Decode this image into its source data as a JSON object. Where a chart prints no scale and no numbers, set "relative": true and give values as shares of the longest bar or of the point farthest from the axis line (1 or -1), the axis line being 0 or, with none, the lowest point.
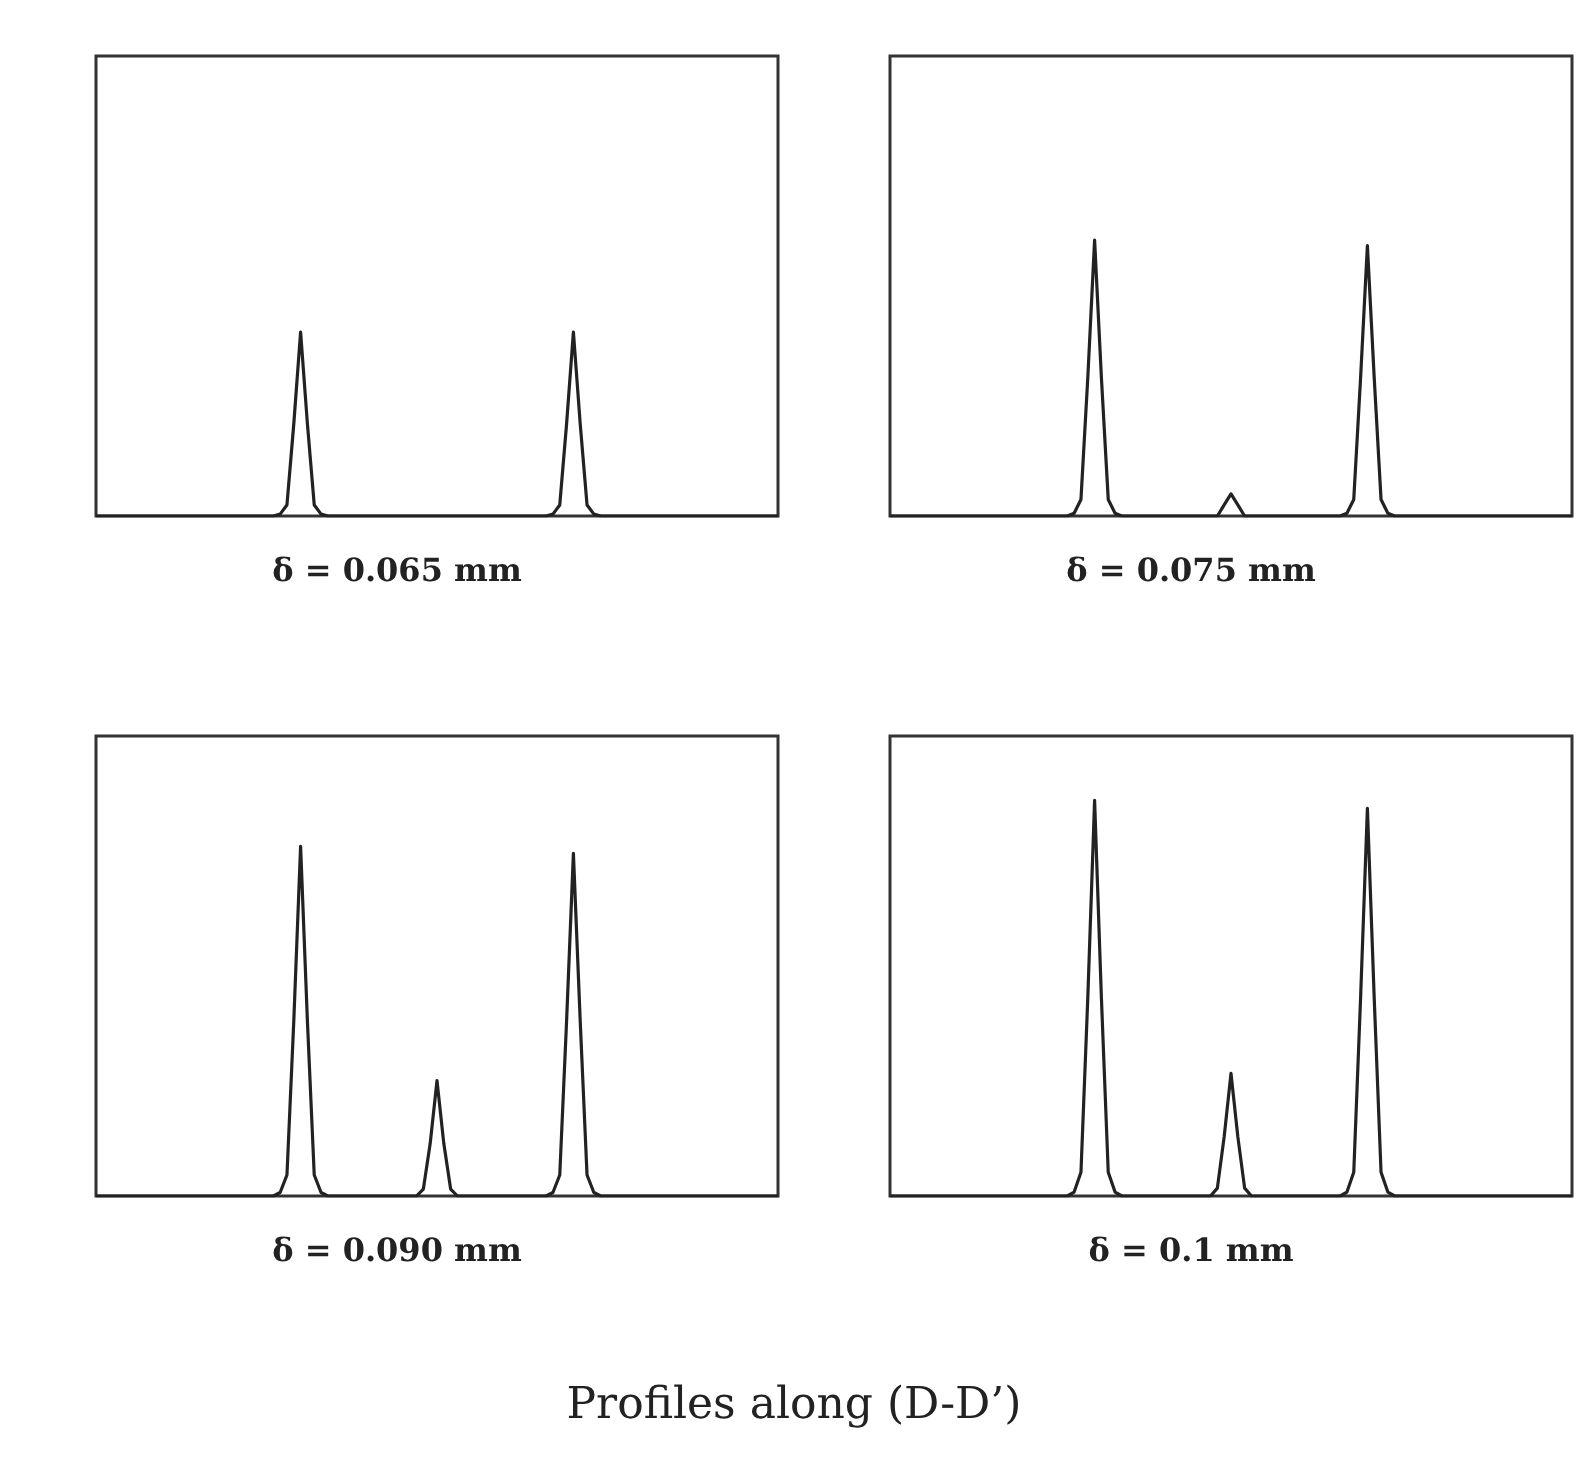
{
  "chart_data": [
    {
      "type": "line",
      "title": "δ = 0.065 mm",
      "relative": true,
      "line_style": "solid",
      "categories": [
        null,
        null,
        null,
        null,
        null,
        null,
        null,
        null,
        null,
        null,
        null,
        null,
        null,
        null,
        null,
        null,
        null,
        null,
        null,
        null,
        null,
        null,
        null,
        null,
        null,
        null,
        null,
        null,
        null,
        null,
        null,
        null,
        null,
        null,
        null,
        null,
        null,
        null,
        null,
        null,
        null,
        null,
        null,
        null,
        null,
        null,
        null,
        null,
        null,
        null,
        null,
        null,
        null,
        null,
        null,
        null,
        null,
        null,
        null,
        null,
        null,
        null,
        null,
        null,
        null,
        null,
        null,
        null,
        null,
        null,
        null,
        null,
        null,
        null,
        null,
        null,
        null,
        null,
        null,
        null,
        null,
        null,
        null,
        null,
        null,
        null,
        null,
        null,
        null,
        null,
        null,
        null,
        null,
        null,
        null,
        null,
        null,
        null,
        null,
        null,
        null
      ],
      "series": [
        {
          "color": "#222222",
          "values": [
            0,
            0,
            0,
            0,
            0,
            0,
            0,
            0,
            0,
            0,
            0,
            0,
            0,
            0,
            0,
            0,
            0,
            0,
            0,
            0,
            0,
            0,
            0,
            0,
            0,
            0,
            0,
            0.01,
            0.06,
            0.5,
            1,
            0.5,
            0.06,
            0.01,
            0,
            0,
            0,
            0,
            0,
            0,
            0,
            0,
            0,
            0,
            0,
            0,
            0,
            0,
            0,
            0,
            0,
            0,
            0,
            0,
            0,
            0,
            0,
            0,
            0,
            0,
            0,
            0,
            0,
            0,
            0,
            0,
            0,
            0.01,
            0.06,
            0.5,
            1,
            0.5,
            0.06,
            0.01,
            0,
            0,
            0,
            0,
            0,
            0,
            0,
            0,
            0,
            0,
            0,
            0,
            0,
            0,
            0,
            0,
            0,
            0,
            0,
            0,
            0,
            0,
            0,
            0,
            0,
            0,
            0
          ]
        }
      ]
    },
    {
      "type": "line",
      "title": "δ = 0.075 mm",
      "relative": true,
      "line_style": "solid",
      "categories": [
        null,
        null,
        null,
        null,
        null,
        null,
        null,
        null,
        null,
        null,
        null,
        null,
        null,
        null,
        null,
        null,
        null,
        null,
        null,
        null,
        null,
        null,
        null,
        null,
        null,
        null,
        null,
        null,
        null,
        null,
        null,
        null,
        null,
        null,
        null,
        null,
        null,
        null,
        null,
        null,
        null,
        null,
        null,
        null,
        null,
        null,
        null,
        null,
        null,
        null,
        null,
        null,
        null,
        null,
        null,
        null,
        null,
        null,
        null,
        null,
        null,
        null,
        null,
        null,
        null,
        null,
        null,
        null,
        null,
        null,
        null,
        null,
        null,
        null,
        null,
        null,
        null,
        null,
        null,
        null,
        null,
        null,
        null,
        null,
        null,
        null,
        null,
        null,
        null,
        null,
        null,
        null,
        null,
        null,
        null,
        null,
        null,
        null,
        null,
        null,
        null
      ],
      "series": [
        {
          "color": "#222222",
          "values": [
            0,
            0,
            0,
            0,
            0,
            0,
            0,
            0,
            0,
            0,
            0,
            0,
            0,
            0,
            0,
            0,
            0,
            0,
            0,
            0,
            0,
            0,
            0,
            0,
            0,
            0,
            0,
            0.01,
            0.06,
            0.5,
            1,
            0.5,
            0.06,
            0.01,
            0,
            0,
            0,
            0,
            0,
            0,
            0,
            0,
            0,
            0,
            0,
            0,
            0,
            0,
            0,
            0.04,
            0.08,
            0.04,
            0,
            0,
            0,
            0,
            0,
            0,
            0,
            0,
            0,
            0,
            0,
            0,
            0,
            0,
            0,
            0.01,
            0.06,
            0.5,
            0.98,
            0.5,
            0.06,
            0.01,
            0,
            0,
            0,
            0,
            0,
            0,
            0,
            0,
            0,
            0,
            0,
            0,
            0,
            0,
            0,
            0,
            0,
            0,
            0,
            0,
            0,
            0,
            0,
            0,
            0,
            0,
            0
          ]
        }
      ]
    },
    {
      "type": "line",
      "title": "δ = 0.090 mm",
      "relative": true,
      "line_style": "solid",
      "categories": [
        null,
        null,
        null,
        null,
        null,
        null,
        null,
        null,
        null,
        null,
        null,
        null,
        null,
        null,
        null,
        null,
        null,
        null,
        null,
        null,
        null,
        null,
        null,
        null,
        null,
        null,
        null,
        null,
        null,
        null,
        null,
        null,
        null,
        null,
        null,
        null,
        null,
        null,
        null,
        null,
        null,
        null,
        null,
        null,
        null,
        null,
        null,
        null,
        null,
        null,
        null,
        null,
        null,
        null,
        null,
        null,
        null,
        null,
        null,
        null,
        null,
        null,
        null,
        null,
        null,
        null,
        null,
        null,
        null,
        null,
        null,
        null,
        null,
        null,
        null,
        null,
        null,
        null,
        null,
        null,
        null,
        null,
        null,
        null,
        null,
        null,
        null,
        null,
        null,
        null,
        null,
        null,
        null,
        null,
        null,
        null,
        null,
        null,
        null,
        null,
        null
      ],
      "series": [
        {
          "color": "#222222",
          "values": [
            0,
            0,
            0,
            0,
            0,
            0,
            0,
            0,
            0,
            0,
            0,
            0,
            0,
            0,
            0,
            0,
            0,
            0,
            0,
            0,
            0,
            0,
            0,
            0,
            0,
            0,
            0,
            0.01,
            0.06,
            0.5,
            1,
            0.5,
            0.06,
            0.01,
            0,
            0,
            0,
            0,
            0,
            0,
            0,
            0,
            0,
            0,
            0,
            0,
            0,
            0,
            0.02,
            0.15,
            0.33,
            0.15,
            0.02,
            0,
            0,
            0,
            0,
            0,
            0,
            0,
            0,
            0,
            0,
            0,
            0,
            0,
            0,
            0.01,
            0.06,
            0.5,
            0.98,
            0.5,
            0.06,
            0.01,
            0,
            0,
            0,
            0,
            0,
            0,
            0,
            0,
            0,
            0,
            0,
            0,
            0,
            0,
            0,
            0,
            0,
            0,
            0,
            0,
            0,
            0,
            0,
            0,
            0,
            0,
            0
          ]
        }
      ]
    },
    {
      "type": "line",
      "title": "δ = 0.1 mm",
      "relative": true,
      "line_style": "solid",
      "annotations": [
        "Profiles along (D-D’)"
      ],
      "categories": [
        null,
        null,
        null,
        null,
        null,
        null,
        null,
        null,
        null,
        null,
        null,
        null,
        null,
        null,
        null,
        null,
        null,
        null,
        null,
        null,
        null,
        null,
        null,
        null,
        null,
        null,
        null,
        null,
        null,
        null,
        null,
        null,
        null,
        null,
        null,
        null,
        null,
        null,
        null,
        null,
        null,
        null,
        null,
        null,
        null,
        null,
        null,
        null,
        null,
        null,
        null,
        null,
        null,
        null,
        null,
        null,
        null,
        null,
        null,
        null,
        null,
        null,
        null,
        null,
        null,
        null,
        null,
        null,
        null,
        null,
        null,
        null,
        null,
        null,
        null,
        null,
        null,
        null,
        null,
        null,
        null,
        null,
        null,
        null,
        null,
        null,
        null,
        null,
        null,
        null,
        null,
        null,
        null,
        null,
        null,
        null,
        null,
        null,
        null,
        null,
        null
      ],
      "series": [
        {
          "color": "#222222",
          "values": [
            0,
            0,
            0,
            0,
            0,
            0,
            0,
            0,
            0,
            0,
            0,
            0,
            0,
            0,
            0,
            0,
            0,
            0,
            0,
            0,
            0,
            0,
            0,
            0,
            0,
            0,
            0,
            0.01,
            0.06,
            0.5,
            1,
            0.5,
            0.06,
            0.01,
            0,
            0,
            0,
            0,
            0,
            0,
            0,
            0,
            0,
            0,
            0,
            0,
            0,
            0,
            0.02,
            0.15,
            0.31,
            0.15,
            0.02,
            0,
            0,
            0,
            0,
            0,
            0,
            0,
            0,
            0,
            0,
            0,
            0,
            0,
            0,
            0.01,
            0.06,
            0.5,
            0.98,
            0.5,
            0.06,
            0.01,
            0,
            0,
            0,
            0,
            0,
            0,
            0,
            0,
            0,
            0,
            0,
            0,
            0,
            0,
            0,
            0,
            0,
            0,
            0,
            0,
            0,
            0,
            0,
            0,
            0,
            0,
            0
          ]
        }
      ]
    }
  ]
}
